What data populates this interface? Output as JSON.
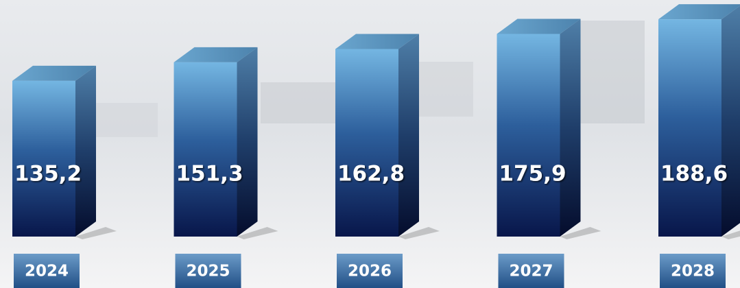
{
  "chart_data": {
    "type": "bar3d",
    "categories": [
      "2024",
      "2025",
      "2026",
      "2027",
      "2028"
    ],
    "values": [
      135.2,
      151.3,
      162.8,
      175.9,
      188.6
    ],
    "value_labels": [
      "135,2",
      "151,3",
      "162,8",
      "175,9",
      "188,6"
    ],
    "color": "#1f4f9a"
  }
}
